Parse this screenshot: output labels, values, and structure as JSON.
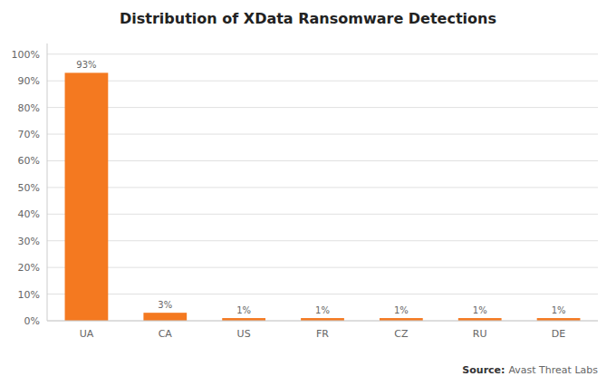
{
  "chart_data": {
    "type": "bar",
    "title": "Distribution of XData Ransomware Detections",
    "categories": [
      "UA",
      "CA",
      "US",
      "FR",
      "CZ",
      "RU",
      "DE"
    ],
    "values": [
      93,
      3,
      1,
      1,
      1,
      1,
      1
    ],
    "value_labels": [
      "93%",
      "3%",
      "1%",
      "1%",
      "1%",
      "1%",
      "1%"
    ],
    "data_labels": true,
    "color": "#F47920",
    "ylim": [
      0,
      104
    ],
    "yticks": [
      {
        "value": 0,
        "label": "0%"
      },
      {
        "value": 10,
        "label": "10%"
      },
      {
        "value": 20,
        "label": "20%"
      },
      {
        "value": 30,
        "label": "30%"
      },
      {
        "value": 40,
        "label": "40%"
      },
      {
        "value": 50,
        "label": "50%"
      },
      {
        "value": 60,
        "label": "60%"
      },
      {
        "value": 70,
        "label": "70%"
      },
      {
        "value": 80,
        "label": "80%"
      },
      {
        "value": 90,
        "label": "90%"
      },
      {
        "value": 100,
        "label": "100%"
      }
    ],
    "grid": true,
    "annotations": [
      "Source:",
      "Avast Threat Labs"
    ]
  }
}
